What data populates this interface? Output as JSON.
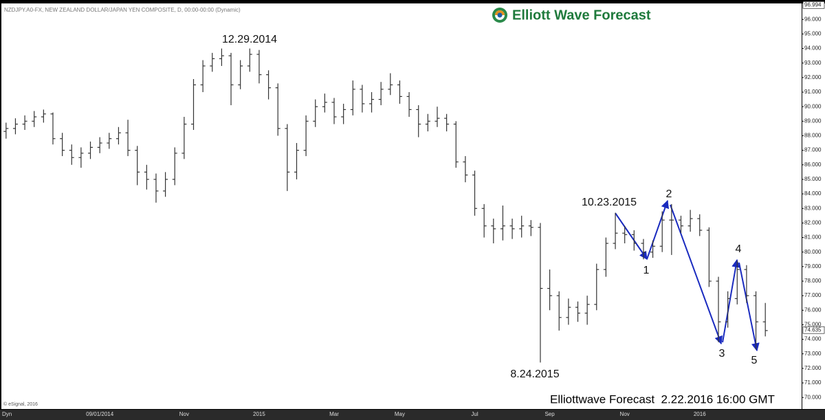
{
  "chart_data": {
    "type": "ohlc",
    "subtitle": "NZDJPY.A0-FX, NEW ZEALAND DOLLAR/JAPAN YEN COMPOSITE, D, 00:00-00:00 (Dynamic)",
    "brand": "Elliott Wave Forecast",
    "footer": "Elliottwave Forecast  2.22.2016 16:00 GMT",
    "source": "© eSignal, 2016",
    "corner_label": "Dyn",
    "top_price": 96.994,
    "last_price": 74.635,
    "annotations": [
      "12.29.2014",
      "8.24.2015",
      "10.23.2015",
      "1",
      "2",
      "3",
      "4",
      "5"
    ],
    "color": "#333333",
    "wave_color": "#1a2bbf",
    "categories": [
      null,
      null,
      null,
      null,
      null,
      null,
      null,
      null,
      null,
      null,
      "09/01/2014",
      null,
      null,
      null,
      null,
      null,
      null,
      null,
      null,
      "Nov",
      null,
      null,
      null,
      null,
      null,
      null,
      null,
      "2015",
      null,
      null,
      null,
      null,
      null,
      null,
      null,
      "Mar",
      null,
      null,
      null,
      null,
      null,
      null,
      "May",
      null,
      null,
      null,
      null,
      null,
      null,
      null,
      "Jul",
      null,
      null,
      null,
      null,
      null,
      null,
      null,
      "Sep",
      null,
      null,
      null,
      null,
      null,
      null,
      null,
      "Nov",
      null,
      null,
      null,
      null,
      null,
      null,
      null,
      "2016",
      null,
      null,
      null,
      null,
      null,
      null,
      null
    ],
    "open": [
      88.3,
      88.5,
      88.8,
      89.0,
      89.3,
      89.5,
      87.8,
      87.0,
      86.5,
      86.8,
      87.2,
      87.5,
      87.8,
      88.2,
      87.0,
      85.5,
      85.0,
      84.2,
      85.0,
      86.8,
      88.8,
      91.5,
      92.8,
      93.3,
      93.5,
      91.5,
      92.8,
      93.6,
      92.2,
      91.3,
      88.5,
      85.5,
      87.0,
      89.0,
      90.0,
      90.3,
      89.3,
      89.8,
      91.2,
      90.2,
      90.5,
      91.2,
      91.5,
      90.7,
      89.8,
      88.8,
      89.0,
      89.2,
      88.8,
      86.2,
      85.3,
      83.0,
      81.8,
      81.6,
      81.8,
      81.6,
      81.8,
      81.7,
      77.5,
      77.0,
      75.5,
      76.2,
      75.8,
      76.4,
      78.8,
      80.6,
      81.3,
      81.2,
      80.6,
      80.0,
      80.4,
      82.2,
      82.2,
      81.8,
      82.3,
      81.5,
      78.0,
      75.2,
      76.8,
      78.8,
      77.0,
      75.2
    ],
    "high": [
      88.9,
      89.2,
      89.4,
      89.7,
      89.8,
      89.6,
      88.2,
      87.4,
      87.2,
      87.6,
      87.9,
      88.2,
      88.6,
      89.1,
      87.3,
      86.0,
      85.4,
      85.5,
      87.2,
      89.3,
      91.9,
      93.2,
      93.7,
      94.0,
      93.7,
      93.2,
      94.0,
      93.9,
      92.5,
      91.6,
      88.8,
      87.5,
      89.4,
      90.5,
      90.9,
      90.6,
      90.2,
      91.8,
      91.5,
      91.0,
      91.7,
      92.3,
      91.8,
      91.0,
      90.1,
      89.5,
      90.0,
      89.5,
      89.0,
      86.6,
      85.6,
      83.3,
      82.3,
      83.2,
      82.3,
      82.5,
      82.2,
      82.0,
      78.8,
      77.3,
      76.8,
      76.6,
      77.0,
      79.2,
      81.0,
      82.7,
      81.8,
      81.5,
      80.9,
      80.8,
      82.8,
      83.3,
      82.5,
      82.9,
      82.6,
      81.7,
      78.3,
      77.3,
      79.4,
      79.1,
      77.3,
      76.5
    ],
    "low": [
      87.8,
      88.1,
      88.4,
      88.6,
      88.9,
      87.4,
      86.6,
      86.0,
      85.8,
      86.4,
      86.8,
      87.1,
      87.4,
      86.6,
      84.6,
      84.3,
      83.4,
      83.8,
      84.6,
      86.4,
      88.4,
      91.0,
      92.4,
      92.8,
      90.1,
      91.2,
      92.4,
      91.6,
      90.5,
      88.0,
      84.2,
      85.0,
      86.6,
      88.6,
      89.6,
      88.8,
      88.8,
      89.4,
      89.6,
      89.6,
      90.1,
      90.8,
      90.2,
      89.3,
      87.9,
      88.3,
      88.6,
      88.3,
      85.8,
      84.8,
      82.5,
      81.0,
      80.6,
      80.8,
      80.9,
      81.0,
      81.1,
      72.4,
      76.0,
      74.6,
      75.0,
      75.2,
      75.0,
      76.0,
      78.3,
      80.2,
      80.6,
      80.1,
      79.5,
      79.6,
      80.0,
      79.8,
      81.3,
      81.4,
      81.1,
      77.6,
      73.8,
      74.8,
      76.4,
      76.5,
      73.3,
      74.2
    ],
    "close": [
      88.5,
      88.8,
      89.0,
      89.3,
      89.5,
      87.8,
      87.0,
      86.5,
      86.8,
      87.2,
      87.5,
      87.8,
      88.2,
      87.0,
      85.5,
      85.0,
      84.2,
      85.0,
      86.8,
      88.8,
      91.5,
      92.8,
      93.3,
      93.5,
      91.5,
      92.8,
      93.6,
      92.2,
      91.3,
      88.5,
      85.5,
      87.0,
      89.0,
      90.0,
      90.3,
      89.3,
      89.8,
      91.2,
      90.2,
      90.5,
      91.2,
      91.5,
      90.7,
      89.8,
      88.8,
      89.0,
      89.2,
      88.8,
      86.2,
      85.3,
      83.0,
      81.8,
      81.6,
      81.8,
      81.6,
      81.8,
      81.7,
      77.5,
      77.0,
      75.5,
      76.2,
      75.8,
      76.4,
      78.8,
      80.6,
      81.3,
      81.2,
      80.6,
      80.0,
      80.4,
      82.2,
      82.2,
      81.8,
      82.3,
      81.5,
      78.0,
      75.2,
      76.8,
      78.8,
      77.0,
      75.2,
      74.6
    ],
    "ylim": [
      69.3,
      97.1
    ],
    "yticks": [
      {
        "value": 70,
        "label": "70.000"
      },
      {
        "value": 71,
        "label": "71.000"
      },
      {
        "value": 72,
        "label": "72.000"
      },
      {
        "value": 73,
        "label": "73.000"
      },
      {
        "value": 74,
        "label": "74.000"
      },
      {
        "value": 75,
        "label": "75.000"
      },
      {
        "value": 76,
        "label": "76.000"
      },
      {
        "value": 77,
        "label": "77.000"
      },
      {
        "value": 78,
        "label": "78.000"
      },
      {
        "value": 79,
        "label": "79.000"
      },
      {
        "value": 80,
        "label": "80.000"
      },
      {
        "value": 81,
        "label": "81.000"
      },
      {
        "value": 82,
        "label": "82.000"
      },
      {
        "value": 83,
        "label": "83.000"
      },
      {
        "value": 84,
        "label": "84.000"
      },
      {
        "value": 85,
        "label": "85.000"
      },
      {
        "value": 86,
        "label": "86.000"
      },
      {
        "value": 87,
        "label": "87.000"
      },
      {
        "value": 88,
        "label": "88.000"
      },
      {
        "value": 89,
        "label": "89.000"
      },
      {
        "value": 90,
        "label": "90.000"
      },
      {
        "value": 91,
        "label": "91.000"
      },
      {
        "value": 92,
        "label": "92.000"
      },
      {
        "value": 93,
        "label": "93.000"
      },
      {
        "value": 94,
        "label": "94.000"
      },
      {
        "value": 95,
        "label": "95.000"
      },
      {
        "value": 96,
        "label": "96.000"
      }
    ],
    "grid": false
  }
}
